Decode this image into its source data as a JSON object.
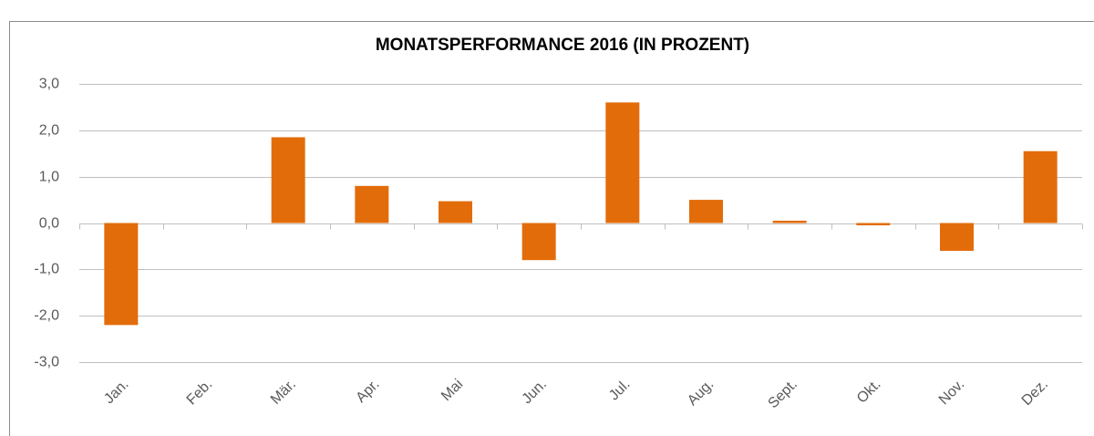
{
  "chart_data": {
    "type": "bar",
    "title": "MONATSPERFORMANCE 2016 (IN PROZENT)",
    "categories": [
      "Jan.",
      "Feb.",
      "Mär.",
      "Apr.",
      "Mai",
      "Jun.",
      "Jul.",
      "Aug.",
      "Sept.",
      "Okt.",
      "Nov.",
      "Dez."
    ],
    "values": [
      -2.2,
      0.0,
      1.85,
      0.8,
      0.47,
      -0.8,
      2.6,
      0.5,
      0.05,
      -0.05,
      -0.6,
      1.55
    ],
    "color": "#e36c0a",
    "ylim": [
      -3,
      3
    ],
    "yticks": [
      {
        "value": -3,
        "label": "-3,0"
      },
      {
        "value": -2,
        "label": "-2,0"
      },
      {
        "value": -1,
        "label": "-1,0"
      },
      {
        "value": 0,
        "label": "0,0"
      },
      {
        "value": 1,
        "label": "1,0"
      },
      {
        "value": 2,
        "label": "2,0"
      },
      {
        "value": 3,
        "label": "3,0"
      }
    ],
    "grid": true
  }
}
